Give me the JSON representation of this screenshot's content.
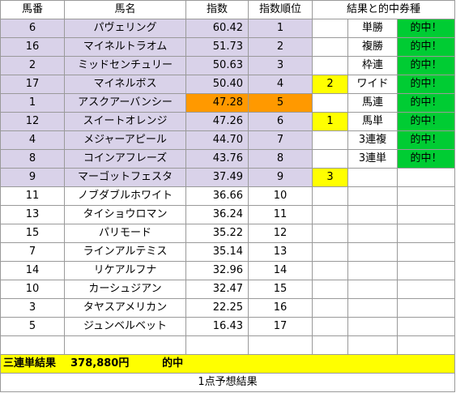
{
  "headers": [
    "馬番",
    "馬名",
    "指数",
    "指数順位",
    "結果と的中券種"
  ],
  "rows": [
    {
      "no": "6",
      "name": "パヴェリング",
      "idx": "60.42",
      "rank": "1",
      "place": "",
      "ticket": "単勝",
      "hit": "的中！"
    },
    {
      "no": "16",
      "name": "マイネルトラオム",
      "idx": "51.73",
      "rank": "2",
      "place": "",
      "ticket": "複勝",
      "hit": "的中！"
    },
    {
      "no": "2",
      "name": "ミッドセンチュリー",
      "idx": "50.63",
      "rank": "3",
      "place": "",
      "ticket": "枠連",
      "hit": "的中！"
    },
    {
      "no": "17",
      "name": "マイネルボス",
      "idx": "50.40",
      "rank": "4",
      "place": "2",
      "ticket": "ワイド",
      "hit": "的中！"
    },
    {
      "no": "1",
      "name": "アスクアーバンシー",
      "idx": "47.28",
      "rank": "5",
      "place": "",
      "ticket": "馬連",
      "hit": "的中！"
    },
    {
      "no": "12",
      "name": "スイートオレンジ",
      "idx": "47.26",
      "rank": "6",
      "place": "1",
      "ticket": "馬単",
      "hit": "的中！"
    },
    {
      "no": "4",
      "name": "メジャーアピール",
      "idx": "44.70",
      "rank": "7",
      "place": "",
      "ticket": "3連複",
      "hit": "的中！"
    },
    {
      "no": "8",
      "name": "コインアフレーズ",
      "idx": "43.76",
      "rank": "8",
      "place": "",
      "ticket": "3連単",
      "hit": "的中！"
    },
    {
      "no": "9",
      "name": "マーゴットフェスタ",
      "idx": "37.49",
      "rank": "9",
      "place": "3",
      "ticket": "",
      "hit": ""
    },
    {
      "no": "11",
      "name": "ノブダブルホワイト",
      "idx": "36.66",
      "rank": "10",
      "place": "",
      "ticket": "",
      "hit": ""
    },
    {
      "no": "13",
      "name": "タイショウロマン",
      "idx": "36.24",
      "rank": "11",
      "place": "",
      "ticket": "",
      "hit": ""
    },
    {
      "no": "15",
      "name": "パリモード",
      "idx": "35.22",
      "rank": "12",
      "place": "",
      "ticket": "",
      "hit": ""
    },
    {
      "no": "7",
      "name": "ラインアルテミス",
      "idx": "35.14",
      "rank": "13",
      "place": "",
      "ticket": "",
      "hit": ""
    },
    {
      "no": "14",
      "name": "リケアルフナ",
      "idx": "32.96",
      "rank": "14",
      "place": "",
      "ticket": "",
      "hit": ""
    },
    {
      "no": "10",
      "name": "カーシュジアン",
      "idx": "32.47",
      "rank": "15",
      "place": "",
      "ticket": "",
      "hit": ""
    },
    {
      "no": "3",
      "name": "タヤスアメリカン",
      "idx": "22.25",
      "rank": "16",
      "place": "",
      "ticket": "",
      "hit": ""
    },
    {
      "no": "5",
      "name": "ジュンベルベット",
      "idx": "16.43",
      "rank": "17",
      "place": "",
      "ticket": "",
      "hit": ""
    },
    {
      "no": "",
      "name": "",
      "idx": "",
      "rank": "",
      "place": "",
      "ticket": "",
      "hit": ""
    }
  ],
  "banner": {
    "label": "三連単結果",
    "amount": "378,880円",
    "result": "的中"
  },
  "footer": "1点予想結果",
  "colors": {
    "highlight_rows": "#d9d2e9",
    "top_index": "#ff9900",
    "place": "#ffff00",
    "hit": "#00cc33",
    "banner": "#ffff00"
  }
}
